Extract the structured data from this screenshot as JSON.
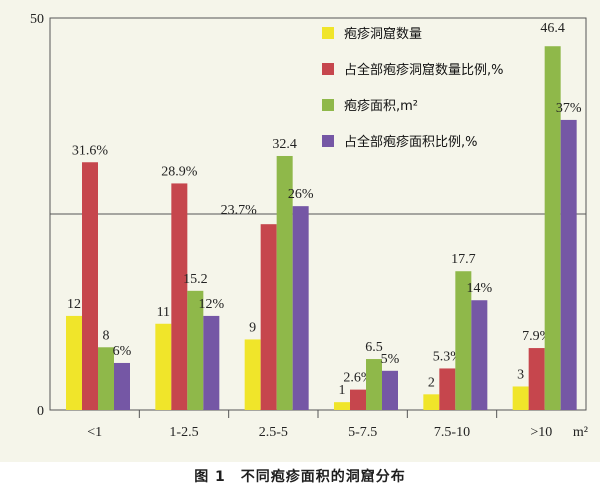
{
  "caption": "图 1　不同疱疹面积的洞窟分布",
  "chart_data": {
    "type": "bar",
    "categories": [
      "<1",
      "1-2.5",
      "2.5-5",
      "5-7.5",
      "7.5-10",
      ">10"
    ],
    "x_unit": "m²",
    "ylim": [
      0,
      50
    ],
    "yticks": [
      0,
      50
    ],
    "grid": "single horizontal line at 25",
    "legend_position": "top-right",
    "series": [
      {
        "name": "疱疹洞窟数量",
        "color": "#f0e52a",
        "values": [
          12,
          11,
          9,
          1,
          2,
          3
        ],
        "labels": [
          "12",
          "11",
          "9",
          "1",
          "2",
          "3"
        ]
      },
      {
        "name": "占全部疱疹洞窟数量比例,%",
        "color": "#c6464d",
        "values": [
          31.6,
          28.9,
          23.7,
          2.6,
          5.3,
          7.9
        ],
        "labels": [
          "31.6%",
          "28.9%",
          "23.7%",
          "2.6%",
          "5.3%",
          "7.9%"
        ]
      },
      {
        "name": "疱疹面积,m²",
        "color": "#8fb84a",
        "values": [
          8,
          15.2,
          32.4,
          6.5,
          17.7,
          46.4
        ],
        "labels": [
          "8",
          "15.2",
          "32.4",
          "6.5",
          "17.7",
          "46.4"
        ]
      },
      {
        "name": "占全部疱疹面积比例,%",
        "color": "#7557a5",
        "values": [
          6,
          12,
          26,
          5,
          14,
          37
        ],
        "labels": [
          "6%",
          "12%",
          "26%",
          "5%",
          "14%",
          "37%"
        ]
      }
    ]
  }
}
